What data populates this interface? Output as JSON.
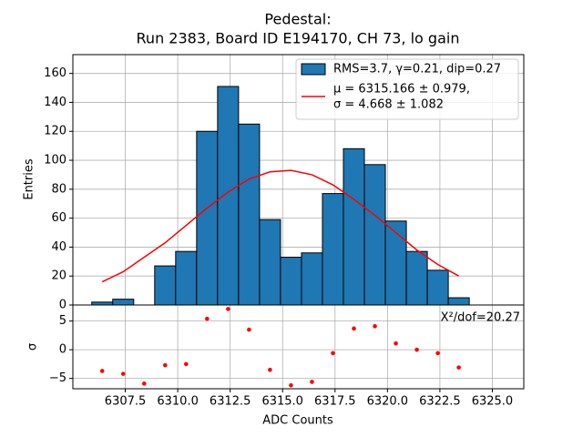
{
  "chart_data": [
    {
      "type": "histogram",
      "title": [
        "Pedestal:",
        "Run 2383, Board ID E194170, CH 73, lo gain"
      ],
      "ylabel": "Entries",
      "bins": [
        6305.9,
        6306.9,
        6307.9,
        6308.9,
        6309.9,
        6310.9,
        6311.9,
        6312.9,
        6313.9,
        6314.9,
        6315.9,
        6316.9,
        6317.9,
        6318.9,
        6319.9,
        6320.9,
        6321.9,
        6322.9,
        6323.9
      ],
      "values": [
        2,
        4,
        0,
        27,
        37,
        120,
        151,
        125,
        59,
        33,
        36,
        77,
        108,
        97,
        58,
        37,
        24,
        5
      ],
      "name": "RMS=3.7, γ=0.21, dip=0.27",
      "color": "#1f77b4",
      "fit": {
        "name": [
          "μ = 6315.166 ± 0.979,",
          "σ = 4.668 ± 1.082"
        ],
        "color": "#ff0000",
        "x": [
          6306.4,
          6307.4,
          6308.4,
          6309.4,
          6310.4,
          6311.4,
          6312.4,
          6313.4,
          6314.4,
          6315.4,
          6316.4,
          6317.4,
          6318.4,
          6319.4,
          6320.4,
          6321.4,
          6322.4,
          6323.4
        ],
        "values": [
          16,
          23,
          33,
          43,
          55,
          67,
          78,
          87,
          92,
          93,
          90,
          83,
          73,
          62,
          50,
          38,
          28,
          20
        ]
      },
      "xlim": [
        6305.0,
        6326.5
      ],
      "xticks": [
        6307.5,
        6310,
        6312.5,
        6315,
        6317.5,
        6320,
        6322.5,
        6325
      ],
      "ylim": [
        0,
        173
      ],
      "yticks": [
        0,
        20,
        40,
        60,
        80,
        100,
        120,
        140,
        160
      ],
      "grid": true,
      "legend": "upper right"
    },
    {
      "type": "scatter",
      "xlabel": "ADC Counts",
      "ylabel": "σ",
      "annotation": "X²/dof=20.27",
      "color": "#ff0000",
      "x": [
        6306.4,
        6307.4,
        6308.4,
        6309.4,
        6310.4,
        6311.4,
        6312.4,
        6313.4,
        6314.4,
        6315.4,
        6316.4,
        6317.4,
        6318.4,
        6319.4,
        6320.4,
        6321.4,
        6322.4,
        6323.4
      ],
      "values": [
        -3.7,
        -4.2,
        -5.9,
        -2.7,
        -2.5,
        5.4,
        7.1,
        3.5,
        -3.5,
        -6.2,
        -5.6,
        -0.6,
        3.7,
        4.1,
        1.1,
        0,
        -0.6,
        -3.1
      ],
      "xlim": [
        6305.0,
        6326.5
      ],
      "xticks": [
        {
          "value": 6307.5,
          "label": "6307.5"
        },
        {
          "value": 6310,
          "label": "6310.0"
        },
        {
          "value": 6312.5,
          "label": "6312.5"
        },
        {
          "value": 6315,
          "label": "6315.0"
        },
        {
          "value": 6317.5,
          "label": "6317.5"
        },
        {
          "value": 6320,
          "label": "6320.0"
        },
        {
          "value": 6322.5,
          "label": "6322.5"
        },
        {
          "value": 6325,
          "label": "6325.0"
        }
      ],
      "ylim": [
        -6.8,
        7.8
      ],
      "yticks": [
        {
          "value": -5,
          "label": "−5"
        },
        0,
        5
      ],
      "grid": true
    }
  ]
}
